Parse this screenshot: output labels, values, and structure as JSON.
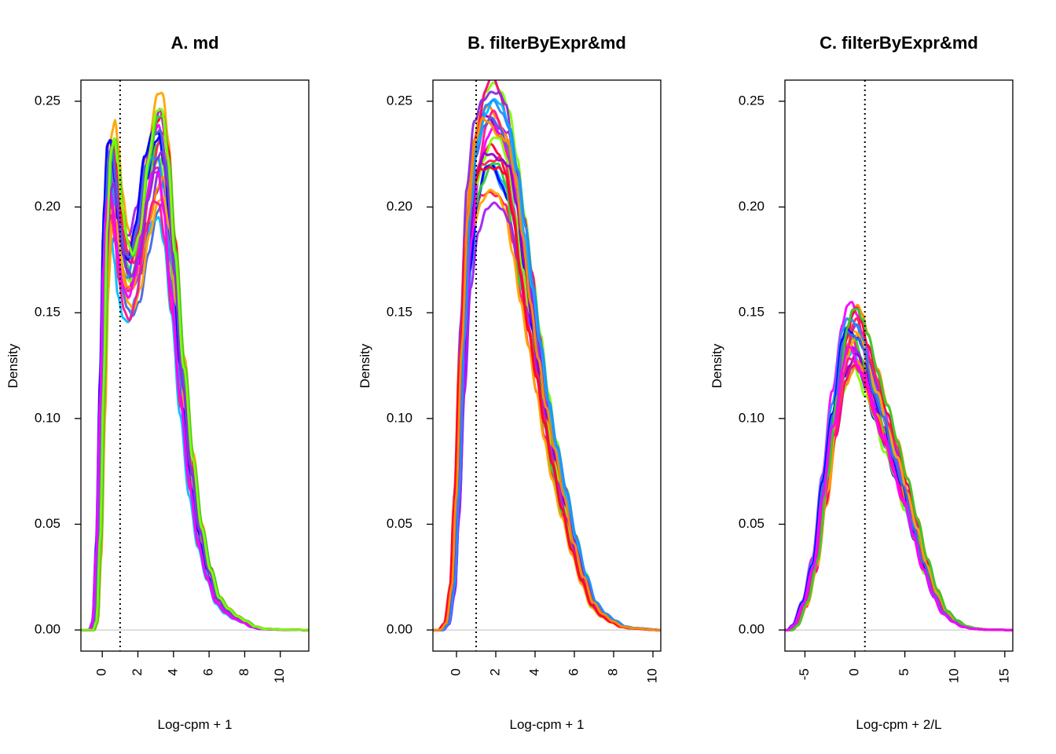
{
  "chart_data": [
    {
      "type": "line",
      "title": "A. md",
      "xlabel": "Log-cpm + 1",
      "ylabel": "Density",
      "xlim": [
        -1.2,
        11.6
      ],
      "ylim": [
        -0.01,
        0.26
      ],
      "xticks": [
        "0",
        "2",
        "4",
        "6",
        "8",
        "10"
      ],
      "xtick_values": [
        0,
        2,
        4,
        6,
        8,
        10
      ],
      "yticks": [
        "0.00",
        "0.05",
        "0.10",
        "0.15",
        "0.20",
        "0.25"
      ],
      "ytick_values": [
        0,
        0.05,
        0.1,
        0.15,
        0.2,
        0.25
      ],
      "cutoff": 1,
      "series_count": 24,
      "peak_x": [
        0.55,
        3.2
      ],
      "profile": [
        [
          -0.6,
          0
        ],
        [
          -0.4,
          0.004
        ],
        [
          -0.2,
          0.04
        ],
        [
          0,
          0.11
        ],
        [
          0.2,
          0.18
        ],
        [
          0.4,
          0.21
        ],
        [
          0.6,
          0.213
        ],
        [
          0.8,
          0.2
        ],
        [
          1.0,
          0.182
        ],
        [
          1.3,
          0.17
        ],
        [
          1.6,
          0.167
        ],
        [
          2.0,
          0.178
        ],
        [
          2.5,
          0.205
        ],
        [
          3.0,
          0.222
        ],
        [
          3.3,
          0.225
        ],
        [
          3.6,
          0.21
        ],
        [
          4.0,
          0.17
        ],
        [
          4.5,
          0.115
        ],
        [
          5.0,
          0.073
        ],
        [
          5.5,
          0.045
        ],
        [
          6.0,
          0.027
        ],
        [
          6.5,
          0.014
        ],
        [
          7.0,
          0.009
        ],
        [
          7.5,
          0.006
        ],
        [
          8.0,
          0.004
        ],
        [
          8.5,
          0.0015
        ],
        [
          9.0,
          0.0005
        ],
        [
          10,
          0.0002
        ],
        [
          11.5,
          0
        ]
      ]
    },
    {
      "type": "line",
      "title": "B. filterByExpr&md",
      "xlabel": "Log-cpm + 1",
      "ylabel": "Density",
      "xlim": [
        -1.2,
        10.4
      ],
      "ylim": [
        -0.01,
        0.26
      ],
      "xticks": [
        "0",
        "2",
        "4",
        "6",
        "8",
        "10"
      ],
      "xtick_values": [
        0,
        2,
        4,
        6,
        8,
        10
      ],
      "yticks": [
        "0.00",
        "0.05",
        "0.10",
        "0.15",
        "0.20",
        "0.25"
      ],
      "ytick_values": [
        0,
        0.05,
        0.1,
        0.15,
        0.2,
        0.25
      ],
      "cutoff": 1,
      "series_count": 24,
      "peak_x": [
        1.8
      ],
      "profile": [
        [
          -0.8,
          0
        ],
        [
          -0.5,
          0.003
        ],
        [
          -0.2,
          0.02
        ],
        [
          0,
          0.06
        ],
        [
          0.3,
          0.13
        ],
        [
          0.6,
          0.185
        ],
        [
          1.0,
          0.215
        ],
        [
          1.4,
          0.228
        ],
        [
          1.8,
          0.232
        ],
        [
          2.2,
          0.228
        ],
        [
          2.6,
          0.22
        ],
        [
          3.0,
          0.2
        ],
        [
          3.4,
          0.175
        ],
        [
          3.8,
          0.15
        ],
        [
          4.2,
          0.125
        ],
        [
          4.6,
          0.1
        ],
        [
          5.0,
          0.08
        ],
        [
          5.5,
          0.06
        ],
        [
          6.0,
          0.04
        ],
        [
          6.5,
          0.024
        ],
        [
          7.0,
          0.012
        ],
        [
          7.5,
          0.007
        ],
        [
          8.0,
          0.004
        ],
        [
          8.5,
          0.0015
        ],
        [
          9.0,
          0.0008
        ],
        [
          10.3,
          0
        ]
      ]
    },
    {
      "type": "line",
      "title": "C. filterByExpr&md",
      "xlabel": "Log-cpm + 2/L",
      "ylabel": "Density",
      "xlim": [
        -7,
        15.8
      ],
      "ylim": [
        -0.01,
        0.26
      ],
      "xticks": [
        "-5",
        "0",
        "5",
        "10",
        "15"
      ],
      "xtick_values": [
        -5,
        0,
        5,
        10,
        15
      ],
      "yticks": [
        "0.00",
        "0.05",
        "0.10",
        "0.15",
        "0.20",
        "0.25"
      ],
      "ytick_values": [
        0,
        0.05,
        0.1,
        0.15,
        0.2,
        0.25
      ],
      "cutoff": 1,
      "series_count": 24,
      "peak_x": [
        0
      ],
      "profile": [
        [
          -6.5,
          0
        ],
        [
          -6,
          0.002
        ],
        [
          -5,
          0.012
        ],
        [
          -4,
          0.03
        ],
        [
          -3,
          0.065
        ],
        [
          -2,
          0.1
        ],
        [
          -1,
          0.128
        ],
        [
          -0.5,
          0.135
        ],
        [
          0,
          0.137
        ],
        [
          0.5,
          0.133
        ],
        [
          1,
          0.125
        ],
        [
          2,
          0.11
        ],
        [
          3,
          0.095
        ],
        [
          4,
          0.08
        ],
        [
          5,
          0.064
        ],
        [
          6,
          0.047
        ],
        [
          7,
          0.03
        ],
        [
          8,
          0.017
        ],
        [
          9,
          0.008
        ],
        [
          10,
          0.004
        ],
        [
          11,
          0.0015
        ],
        [
          12,
          0.0006
        ],
        [
          13,
          0.0002
        ],
        [
          15.5,
          0
        ]
      ]
    }
  ],
  "palette": [
    "#0000ff",
    "#1e90ff",
    "#00bfff",
    "#7fff00",
    "#32cd32",
    "#ffa500",
    "#ff8c00",
    "#9400d3",
    "#a020f0",
    "#ff00ff",
    "#ff1493",
    "#ff0080",
    "#ff0033",
    "#ff2050",
    "#8a2be2",
    "#4169e1"
  ]
}
